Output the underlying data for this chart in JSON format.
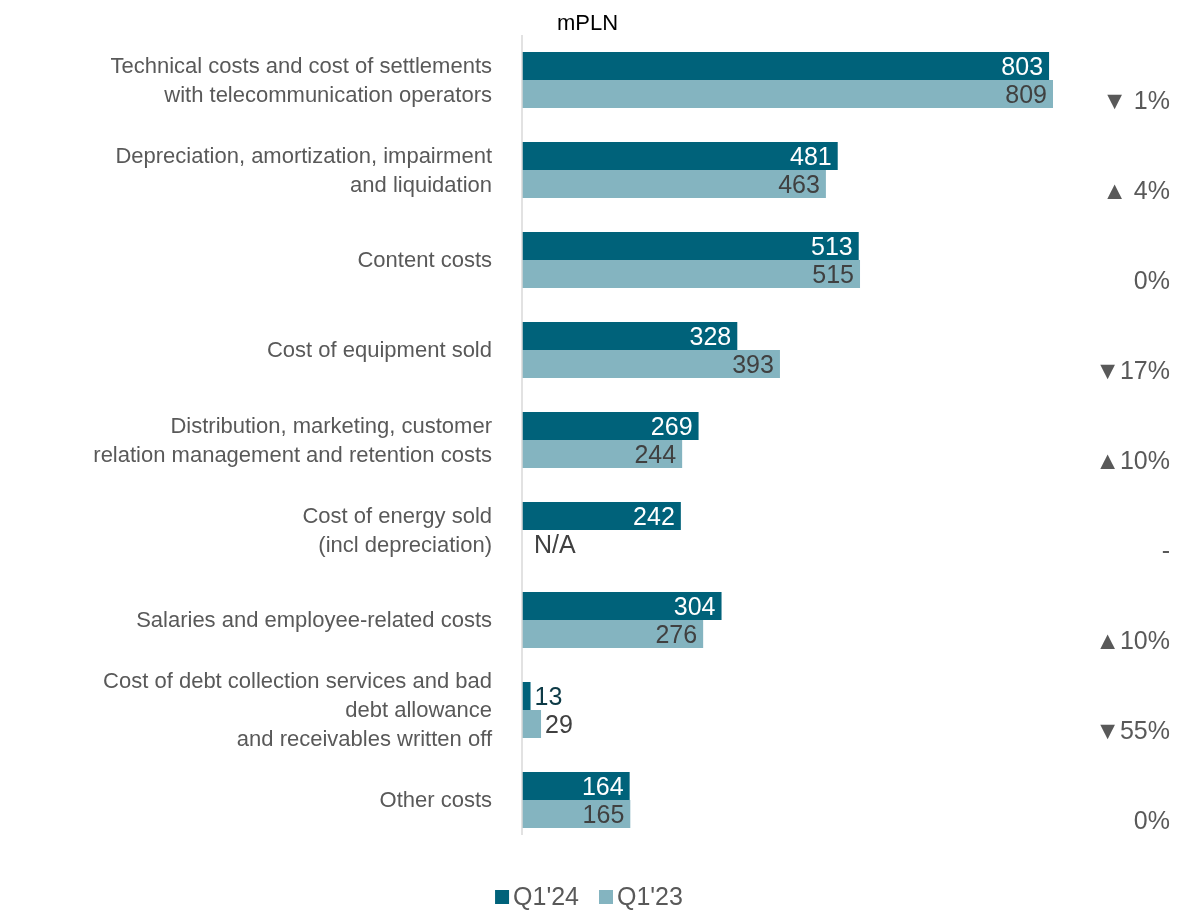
{
  "chart_data": {
    "type": "bar",
    "orientation": "horizontal",
    "title": "mPLN",
    "categories": [
      "Technical costs and cost of settlements\nwith telecommunication operators",
      "Depreciation, amortization, impairment\nand liquidation",
      "Content costs",
      "Cost of equipment sold",
      "Distribution, marketing, customer\nrelation management and retention costs",
      "Cost of energy sold\n(incl depreciation)",
      "Salaries and employee-related costs",
      "Cost of debt collection services and bad\ndebt allowance\nand receivables written off",
      "Other costs"
    ],
    "series": [
      {
        "name": "Q1'24",
        "color": "#00627a",
        "values": [
          803,
          481,
          513,
          328,
          269,
          242,
          304,
          13,
          164
        ],
        "value_labels": [
          "803",
          "481",
          "513",
          "328",
          "269",
          "242",
          "304",
          "13",
          "164"
        ]
      },
      {
        "name": "Q1'23",
        "color": "#84b4c0",
        "values": [
          809,
          463,
          515,
          393,
          244,
          null,
          276,
          29,
          165
        ],
        "value_labels": [
          "809",
          "463",
          "515",
          "393",
          "244",
          "N/A",
          "276",
          "29",
          "165"
        ]
      }
    ],
    "annotations": [
      "▼ 1%",
      "▲ 4%",
      "0%",
      "▼17%",
      "▲10%",
      "-",
      "▲10%",
      "▼55%",
      "0%"
    ],
    "legend": "bottom"
  }
}
